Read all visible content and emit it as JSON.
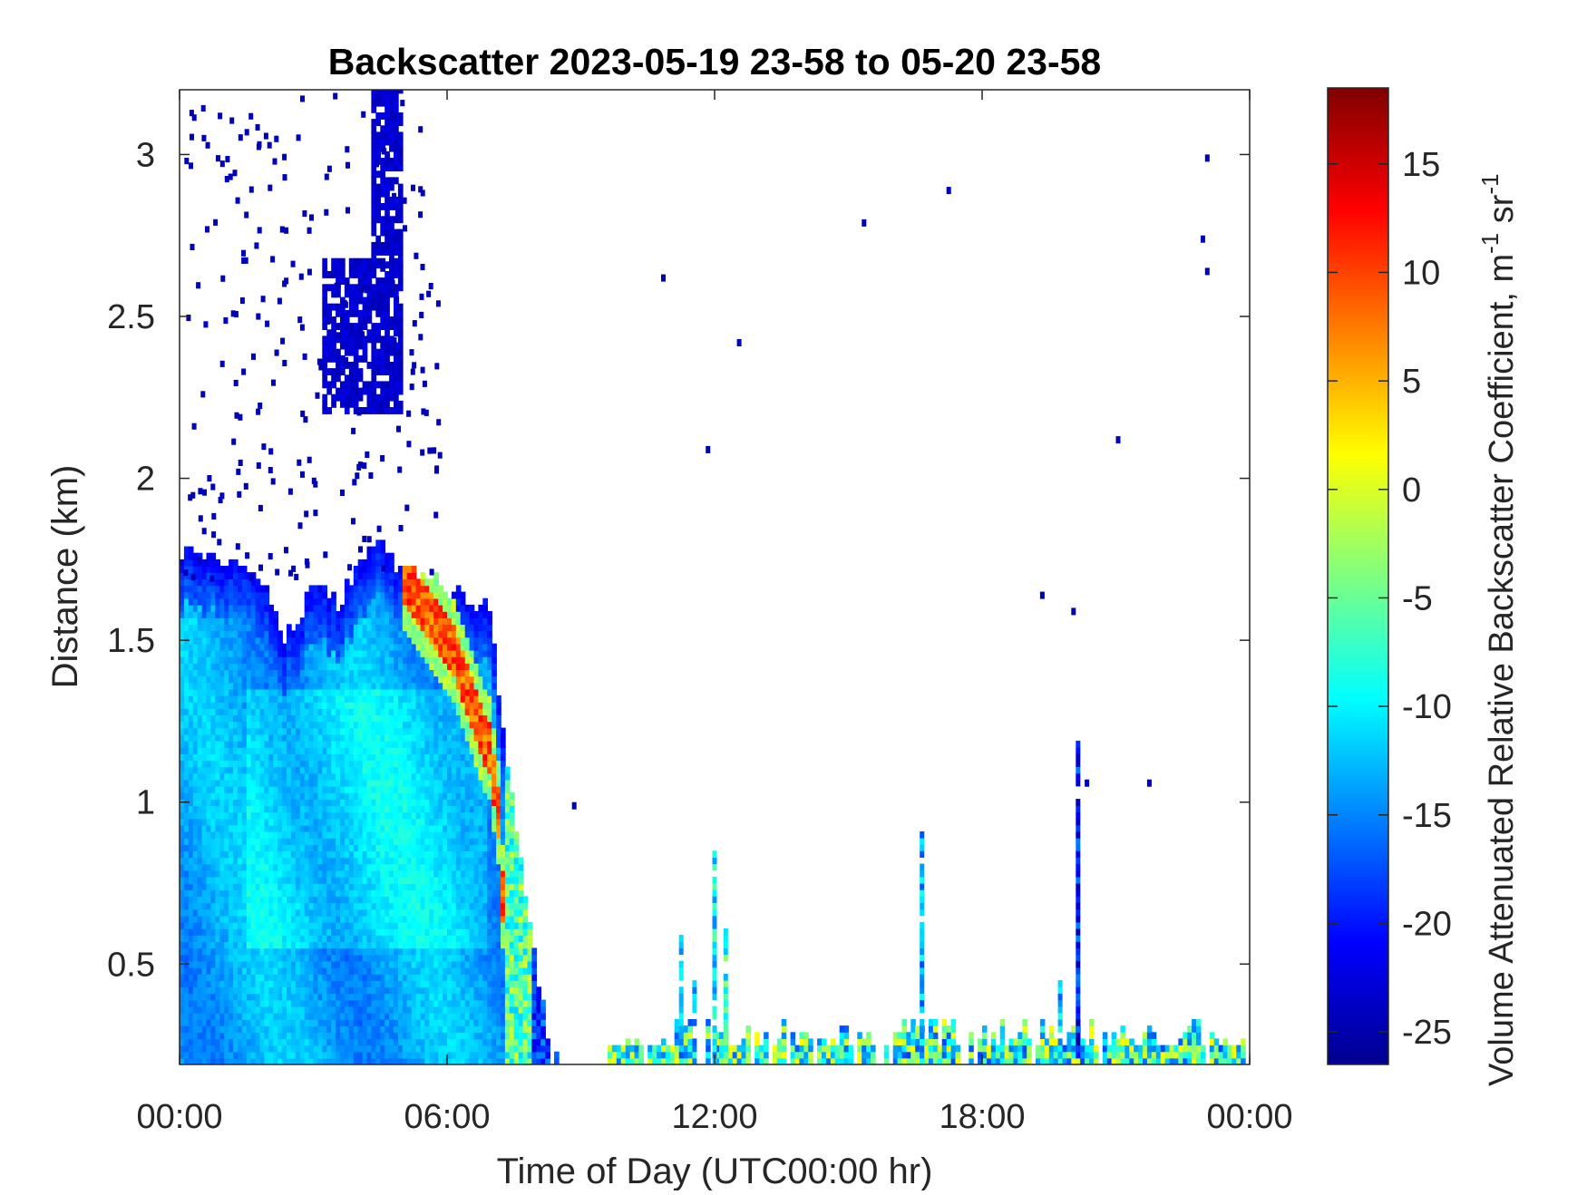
{
  "chart_data": {
    "type": "heatmap",
    "title": "Backscatter 2023-05-19 23-58 to 05-20 23-58",
    "xlabel": "Time of Day (UTC00:00 hr)",
    "ylabel": "Distance (km)",
    "xlim_hours": [
      0,
      24
    ],
    "ylim_km": [
      0.19,
      3.2
    ],
    "x_ticks": [
      {
        "value": 0,
        "label": "00:00"
      },
      {
        "value": 6,
        "label": "06:00"
      },
      {
        "value": 12,
        "label": "12:00"
      },
      {
        "value": 18,
        "label": "18:00"
      },
      {
        "value": 24,
        "label": "00:00"
      }
    ],
    "y_ticks": [
      {
        "value": 0.5,
        "label": "0.5"
      },
      {
        "value": 1,
        "label": "1"
      },
      {
        "value": 1.5,
        "label": "1.5"
      },
      {
        "value": 2,
        "label": "2"
      },
      {
        "value": 2.5,
        "label": "2.5"
      },
      {
        "value": 3,
        "label": "3"
      }
    ],
    "colorbar": {
      "label_main": "Volume Attenuated Relative Backscatter Coefficient, m",
      "label_exp1": "-1",
      "label_mid": " sr",
      "label_exp2": "-1",
      "clim": [
        -26.5,
        18.5
      ],
      "colormap": "jet",
      "ticks": [
        {
          "value": 15,
          "label": "15"
        },
        {
          "value": 10,
          "label": "10"
        },
        {
          "value": 5,
          "label": "5"
        },
        {
          "value": 0,
          "label": "0"
        },
        {
          "value": -5,
          "label": "-5"
        },
        {
          "value": -10,
          "label": "-10"
        },
        {
          "value": -15,
          "label": "-15"
        },
        {
          "value": -20,
          "label": "-20"
        },
        {
          "value": -25,
          "label": "-25"
        }
      ]
    },
    "boundary_layer_top_km": [
      [
        0.0,
        1.76
      ],
      [
        0.5,
        1.75
      ],
      [
        1.0,
        1.74
      ],
      [
        1.5,
        1.72
      ],
      [
        2.0,
        1.62
      ],
      [
        2.3,
        1.5
      ],
      [
        2.6,
        1.55
      ],
      [
        3.0,
        1.68
      ],
      [
        3.5,
        1.6
      ],
      [
        4.0,
        1.72
      ],
      [
        4.4,
        1.8
      ],
      [
        4.8,
        1.72
      ],
      [
        5.2,
        1.7
      ],
      [
        5.6,
        1.68
      ],
      [
        6.0,
        1.65
      ],
      [
        6.5,
        1.6
      ],
      [
        6.9,
        1.6
      ],
      [
        7.2,
        1.2
      ],
      [
        7.5,
        0.9
      ],
      [
        7.8,
        0.6
      ],
      [
        8.1,
        0.35
      ],
      [
        8.3,
        0.19
      ]
    ],
    "elevated_layers": [
      {
        "t0": 4.3,
        "t1": 4.95,
        "d0": 2.65,
        "d1": 3.2,
        "value": -24
      },
      {
        "t0": 3.2,
        "t1": 4.9,
        "d0": 2.2,
        "d1": 2.68,
        "value": -24
      }
    ],
    "high_backscatter_band": [
      {
        "t": 4.9,
        "d": 1.7
      },
      {
        "t": 5.3,
        "d": 1.62
      },
      {
        "t": 5.7,
        "d": 1.55
      },
      {
        "t": 6.1,
        "d": 1.45
      },
      {
        "t": 6.5,
        "d": 1.3
      },
      {
        "t": 6.9,
        "d": 1.15
      },
      {
        "t": 7.1,
        "d": 0.95
      },
      {
        "t": 7.2,
        "d": 0.7
      }
    ],
    "afternoon_plumes": [
      {
        "t": 11.2,
        "top": 0.58,
        "value": -14
      },
      {
        "t": 11.5,
        "top": 0.45,
        "value": -12
      },
      {
        "t": 11.95,
        "top": 0.85,
        "value": -10
      },
      {
        "t": 12.2,
        "top": 0.6,
        "value": -8
      },
      {
        "t": 16.6,
        "top": 0.9,
        "value": -13
      },
      {
        "t": 20.1,
        "top": 1.18,
        "value": -20
      },
      {
        "t": 19.7,
        "top": 0.45,
        "value": -12
      }
    ]
  }
}
